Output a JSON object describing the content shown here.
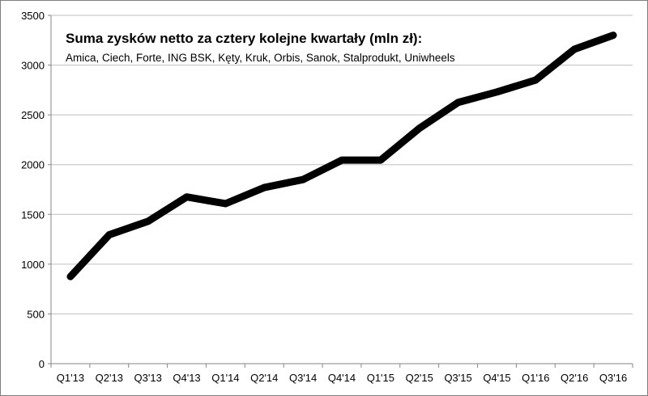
{
  "chart_data": {
    "type": "line",
    "title": "Suma zysków netto za cztery kolejne kwartały (mln zł):",
    "subtitle": "Amica, Ciech, Forte, ING BSK, Kęty, Kruk, Orbis, Sanok, Stalprodukt, Uniwheels",
    "categories": [
      "Q1'13",
      "Q2'13",
      "Q3'13",
      "Q4'13",
      "Q1'14",
      "Q2'14",
      "Q3'14",
      "Q4'14",
      "Q1'15",
      "Q2'15",
      "Q3'15",
      "Q4'15",
      "Q1'16",
      "Q2'16",
      "Q3'16"
    ],
    "values": [
      875,
      1295,
      1430,
      1675,
      1608,
      1770,
      1850,
      2045,
      2045,
      2365,
      2625,
      2730,
      2850,
      3160,
      3300
    ],
    "ylim": [
      0,
      3500
    ],
    "yticks": [
      0,
      500,
      1000,
      1500,
      2000,
      2500,
      3000,
      3500
    ],
    "grid": true,
    "line_color": "#000000",
    "grid_color": "#bfbfbf",
    "legend": "none"
  }
}
